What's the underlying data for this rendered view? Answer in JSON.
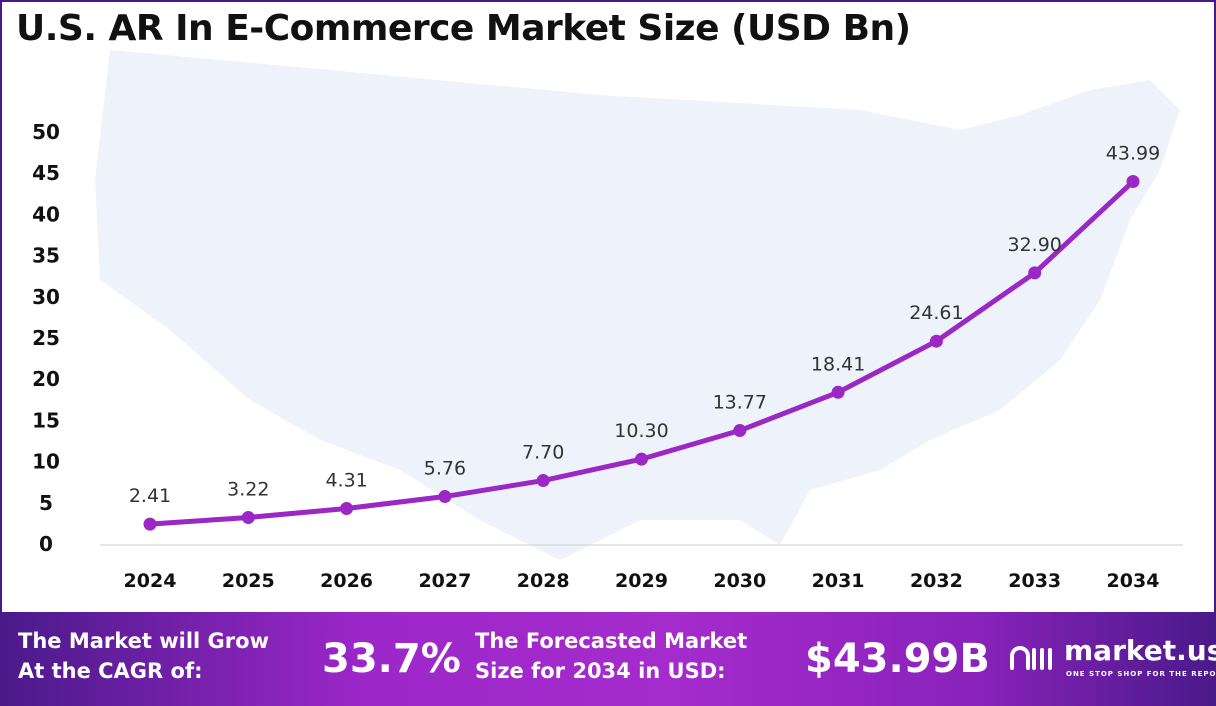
{
  "chart_data": {
    "type": "line",
    "title": "U.S. AR In E-Commerce Market Size (USD Bn)",
    "categories": [
      "2024",
      "2025",
      "2026",
      "2027",
      "2028",
      "2029",
      "2030",
      "2031",
      "2032",
      "2033",
      "2034"
    ],
    "values": [
      2.41,
      3.22,
      4.31,
      5.76,
      7.7,
      10.3,
      13.77,
      18.41,
      24.61,
      32.9,
      43.99
    ],
    "value_labels": [
      "2.41",
      "3.22",
      "4.31",
      "5.76",
      "7.70",
      "10.30",
      "13.77",
      "18.41",
      "24.61",
      "32.90",
      "43.99"
    ],
    "yticks": [
      "0",
      "5",
      "10",
      "15",
      "20",
      "25",
      "30",
      "35",
      "40",
      "45",
      "50"
    ],
    "ylim": [
      0,
      50
    ],
    "grid": false,
    "line_color": "#9b27c4"
  },
  "footer": {
    "cagr_label_1": "The Market will Grow",
    "cagr_label_2": "At the CAGR of:",
    "cagr_value": "33.7%",
    "forecast_label_1": "The Forecasted Market",
    "forecast_label_2": "Size for 2034 in USD:",
    "forecast_value": "$43.99B",
    "logo_text": "market.us",
    "logo_tagline": "ONE STOP SHOP FOR THE REPORTS"
  }
}
